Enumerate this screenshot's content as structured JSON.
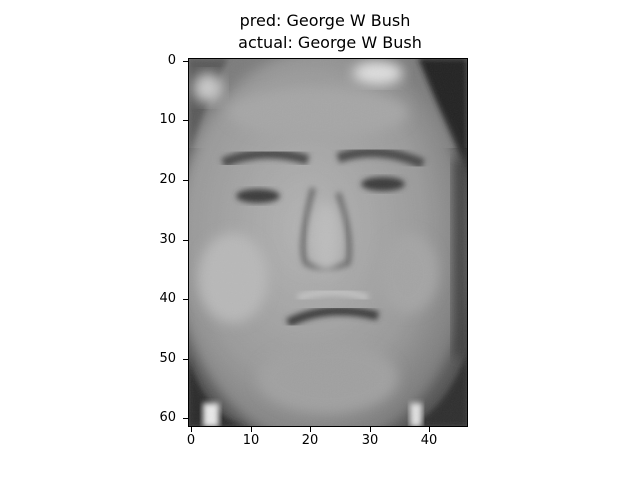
{
  "figure": {
    "title_line1": "pred: George W Bush",
    "title_line2": "actual: George W Bush",
    "image": {
      "subject": "grayscale face portrait",
      "colormap": "gray",
      "pixel_rows": 62,
      "pixel_cols": 47
    },
    "y_ticks": [
      {
        "label": "0",
        "value": 0
      },
      {
        "label": "10",
        "value": 10
      },
      {
        "label": "20",
        "value": 20
      },
      {
        "label": "30",
        "value": 30
      },
      {
        "label": "40",
        "value": 40
      },
      {
        "label": "50",
        "value": 50
      },
      {
        "label": "60",
        "value": 60
      }
    ],
    "x_ticks": [
      {
        "label": "0",
        "value": 0
      },
      {
        "label": "10",
        "value": 10
      },
      {
        "label": "20",
        "value": 20
      },
      {
        "label": "30",
        "value": 30
      },
      {
        "label": "40",
        "value": 40
      }
    ]
  }
}
